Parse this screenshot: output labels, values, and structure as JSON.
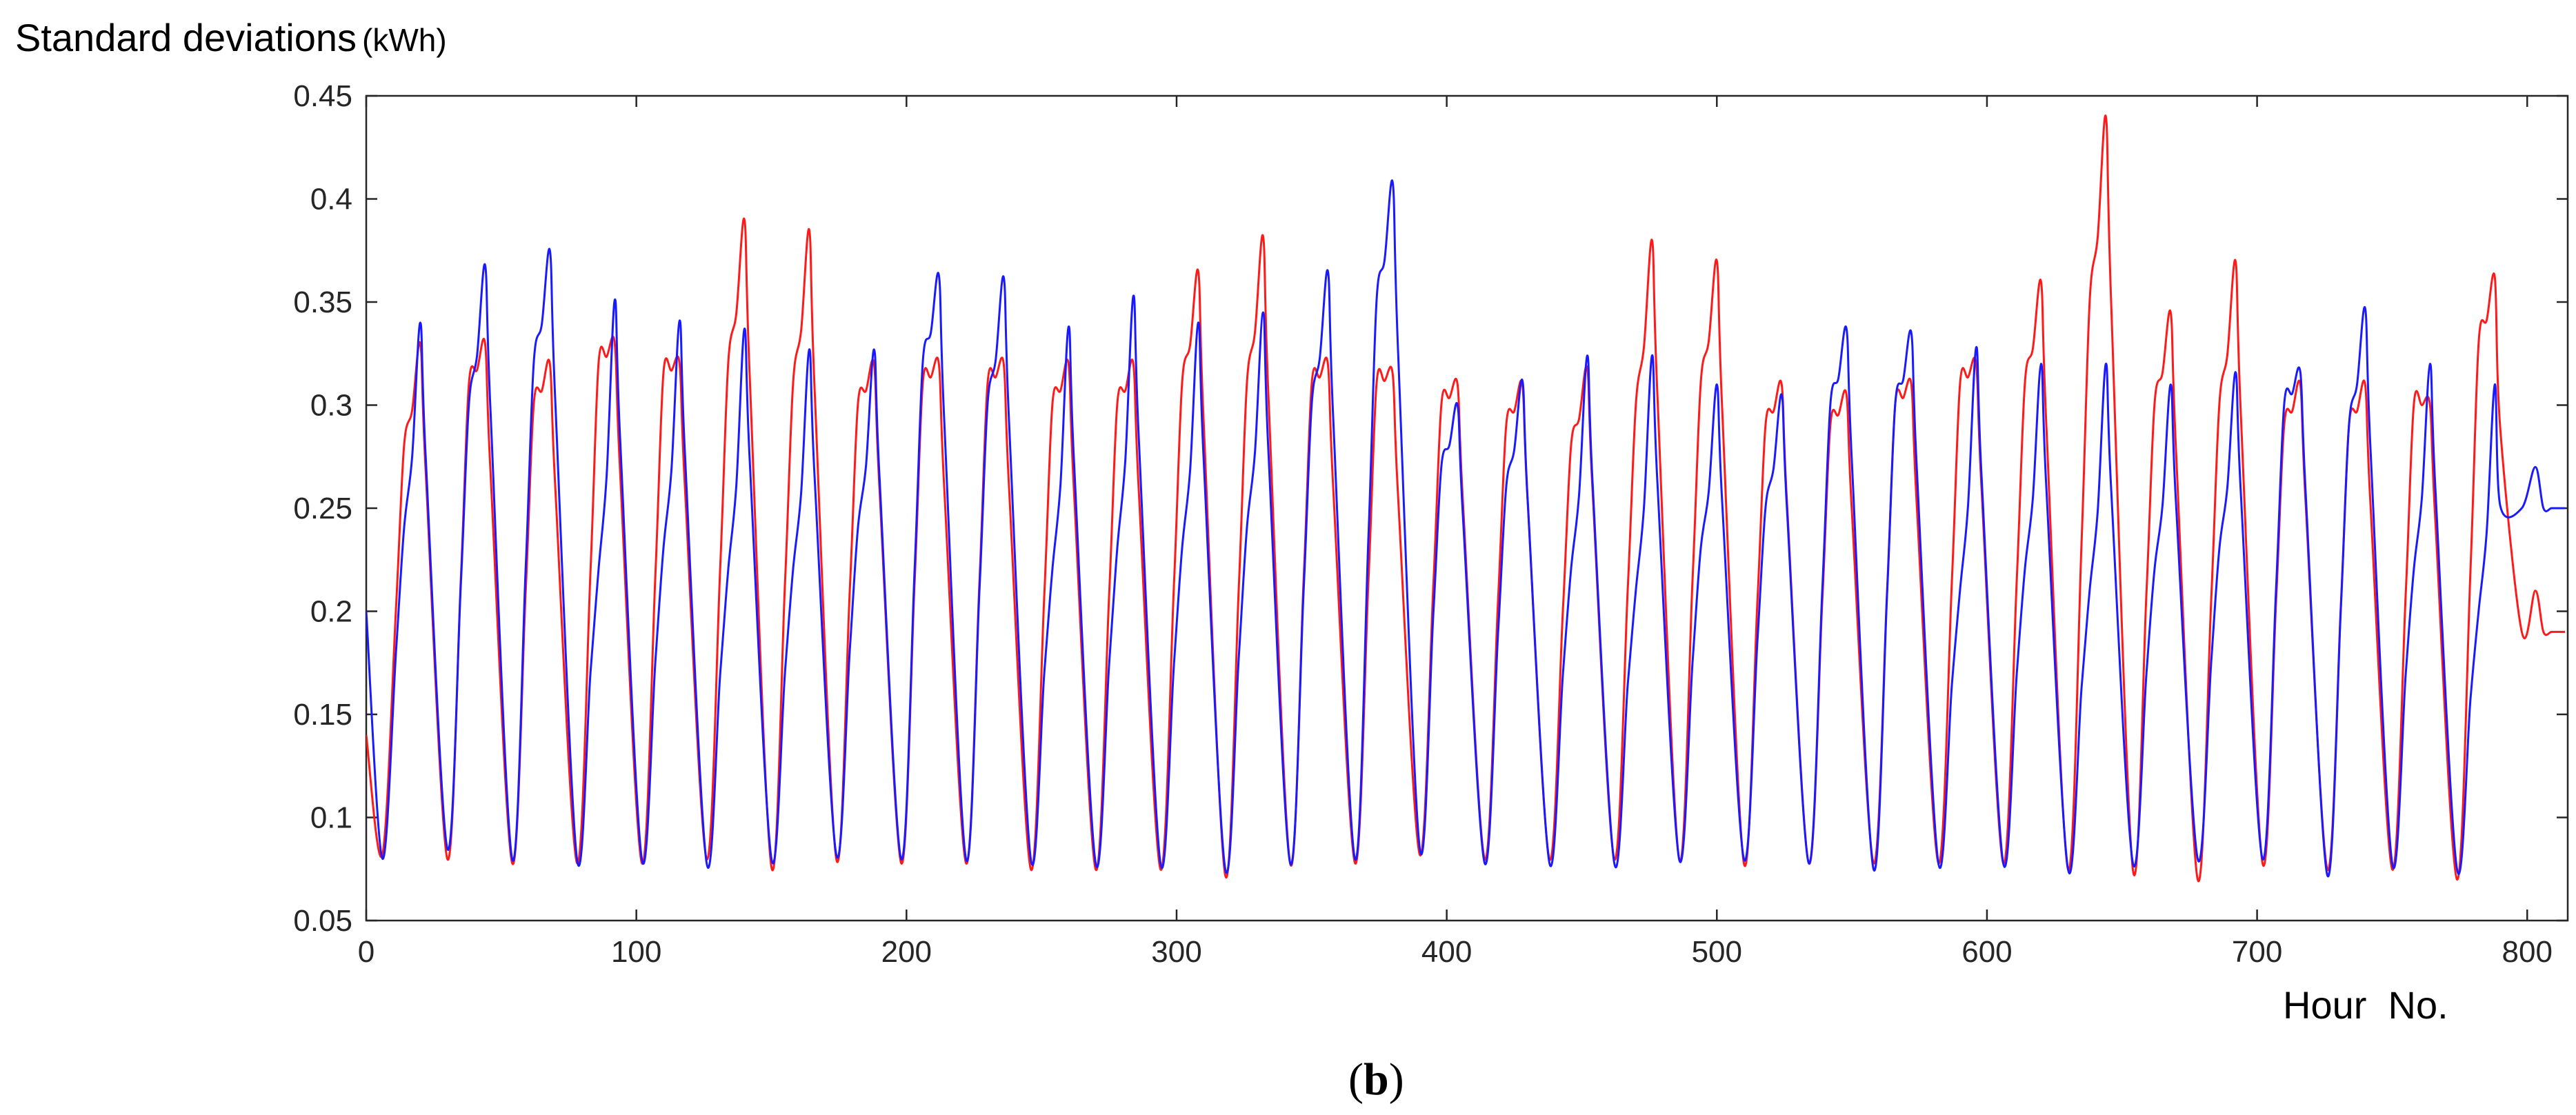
{
  "chart_data": {
    "type": "line",
    "title": "",
    "ylabel": "Standard deviations",
    "ylabel_unit": "(kWh)",
    "xlabel": "Hour  No.",
    "panel_label": "b",
    "xlim": [
      0,
      815
    ],
    "ylim": [
      0.05,
      0.45
    ],
    "x_ticks": [
      0,
      100,
      200,
      300,
      400,
      500,
      600,
      700,
      800
    ],
    "y_ticks": [
      0.05,
      0.1,
      0.15,
      0.2,
      0.25,
      0.3,
      0.35,
      0.4,
      0.45
    ],
    "x_tick_labels": [
      "0",
      "100",
      "200",
      "300",
      "400",
      "500",
      "600",
      "700",
      "800"
    ],
    "y_tick_labels": [
      "0.05",
      "0.1",
      "0.15",
      "0.2",
      "0.25",
      "0.3",
      "0.35",
      "0.4",
      "0.45"
    ],
    "grid": false,
    "legend": "none",
    "series": [
      {
        "color": "#ff1a1a",
        "cycle_hours": 24,
        "start_value": 0.14,
        "cycles": [
          {
            "min": 0.082,
            "mid": 0.28,
            "peak": 0.33
          },
          {
            "min": 0.08,
            "mid": 0.31,
            "peak": 0.33
          },
          {
            "min": 0.078,
            "mid": 0.3,
            "peak": 0.32
          },
          {
            "min": 0.078,
            "mid": 0.32,
            "peak": 0.33
          },
          {
            "min": 0.078,
            "mid": 0.315,
            "peak": 0.32
          },
          {
            "min": 0.08,
            "mid": 0.32,
            "peak": 0.39
          },
          {
            "min": 0.076,
            "mid": 0.31,
            "peak": 0.385
          },
          {
            "min": 0.08,
            "mid": 0.3,
            "peak": 0.32
          },
          {
            "min": 0.078,
            "mid": 0.31,
            "peak": 0.32
          },
          {
            "min": 0.078,
            "mid": 0.31,
            "peak": 0.32
          },
          {
            "min": 0.075,
            "mid": 0.3,
            "peak": 0.32
          },
          {
            "min": 0.075,
            "mid": 0.3,
            "peak": 0.32
          },
          {
            "min": 0.075,
            "mid": 0.31,
            "peak": 0.365
          },
          {
            "min": 0.072,
            "mid": 0.31,
            "peak": 0.382
          },
          {
            "min": 0.078,
            "mid": 0.31,
            "peak": 0.32
          },
          {
            "min": 0.078,
            "mid": 0.31,
            "peak": 0.315
          },
          {
            "min": 0.082,
            "mid": 0.3,
            "peak": 0.31
          },
          {
            "min": 0.08,
            "mid": 0.29,
            "peak": 0.31
          },
          {
            "min": 0.08,
            "mid": 0.28,
            "peak": 0.318
          },
          {
            "min": 0.08,
            "mid": 0.3,
            "peak": 0.38
          },
          {
            "min": 0.08,
            "mid": 0.31,
            "peak": 0.37
          },
          {
            "min": 0.078,
            "mid": 0.29,
            "peak": 0.31
          },
          {
            "min": 0.078,
            "mid": 0.29,
            "peak": 0.305
          },
          {
            "min": 0.078,
            "mid": 0.3,
            "peak": 0.31
          },
          {
            "min": 0.078,
            "mid": 0.31,
            "peak": 0.32
          },
          {
            "min": 0.078,
            "mid": 0.31,
            "peak": 0.36
          },
          {
            "min": 0.075,
            "mid": 0.35,
            "peak": 0.44
          },
          {
            "min": 0.075,
            "mid": 0.3,
            "peak": 0.345
          },
          {
            "min": 0.07,
            "mid": 0.3,
            "peak": 0.37
          },
          {
            "min": 0.078,
            "mid": 0.29,
            "peak": 0.31
          },
          {
            "min": 0.075,
            "mid": 0.29,
            "peak": 0.31
          },
          {
            "min": 0.075,
            "mid": 0.3,
            "peak": 0.3
          },
          {
            "min": 0.07,
            "mid": 0.33,
            "peak": 0.362
          },
          {
            "min": 0.19,
            "mid": 0.19,
            "peak": 0.19
          }
        ]
      },
      {
        "color": "#1a1aff",
        "cycle_hours": 24,
        "start_value": 0.2,
        "cycles": [
          {
            "min": 0.08,
            "mid": 0.24,
            "peak": 0.34
          },
          {
            "min": 0.085,
            "mid": 0.3,
            "peak": 0.368
          },
          {
            "min": 0.08,
            "mid": 0.32,
            "peak": 0.375
          },
          {
            "min": 0.08,
            "mid": 0.22,
            "peak": 0.351
          },
          {
            "min": 0.08,
            "mid": 0.23,
            "peak": 0.341
          },
          {
            "min": 0.078,
            "mid": 0.22,
            "peak": 0.337
          },
          {
            "min": 0.08,
            "mid": 0.22,
            "peak": 0.327
          },
          {
            "min": 0.082,
            "mid": 0.24,
            "peak": 0.327
          },
          {
            "min": 0.08,
            "mid": 0.32,
            "peak": 0.363
          },
          {
            "min": 0.08,
            "mid": 0.3,
            "peak": 0.362
          },
          {
            "min": 0.08,
            "mid": 0.22,
            "peak": 0.338
          },
          {
            "min": 0.078,
            "mid": 0.23,
            "peak": 0.353
          },
          {
            "min": 0.078,
            "mid": 0.23,
            "peak": 0.34
          },
          {
            "min": 0.075,
            "mid": 0.24,
            "peak": 0.345
          },
          {
            "min": 0.078,
            "mid": 0.3,
            "peak": 0.365
          },
          {
            "min": 0.08,
            "mid": 0.35,
            "peak": 0.408
          },
          {
            "min": 0.085,
            "mid": 0.27,
            "peak": 0.3
          },
          {
            "min": 0.078,
            "mid": 0.26,
            "peak": 0.312
          },
          {
            "min": 0.078,
            "mid": 0.22,
            "peak": 0.324
          },
          {
            "min": 0.078,
            "mid": 0.21,
            "peak": 0.324
          },
          {
            "min": 0.08,
            "mid": 0.23,
            "peak": 0.31
          },
          {
            "min": 0.08,
            "mid": 0.25,
            "peak": 0.305
          },
          {
            "min": 0.078,
            "mid": 0.3,
            "peak": 0.337
          },
          {
            "min": 0.075,
            "mid": 0.3,
            "peak": 0.335
          },
          {
            "min": 0.078,
            "mid": 0.21,
            "peak": 0.328
          },
          {
            "min": 0.078,
            "mid": 0.22,
            "peak": 0.32
          },
          {
            "min": 0.075,
            "mid": 0.21,
            "peak": 0.32
          },
          {
            "min": 0.078,
            "mid": 0.22,
            "peak": 0.31
          },
          {
            "min": 0.08,
            "mid": 0.23,
            "peak": 0.316
          },
          {
            "min": 0.08,
            "mid": 0.3,
            "peak": 0.316
          },
          {
            "min": 0.072,
            "mid": 0.29,
            "peak": 0.347
          },
          {
            "min": 0.078,
            "mid": 0.22,
            "peak": 0.32
          },
          {
            "min": 0.075,
            "mid": 0.2,
            "peak": 0.31
          },
          {
            "min": 0.25,
            "mid": 0.25,
            "peak": 0.25
          }
        ]
      }
    ]
  }
}
